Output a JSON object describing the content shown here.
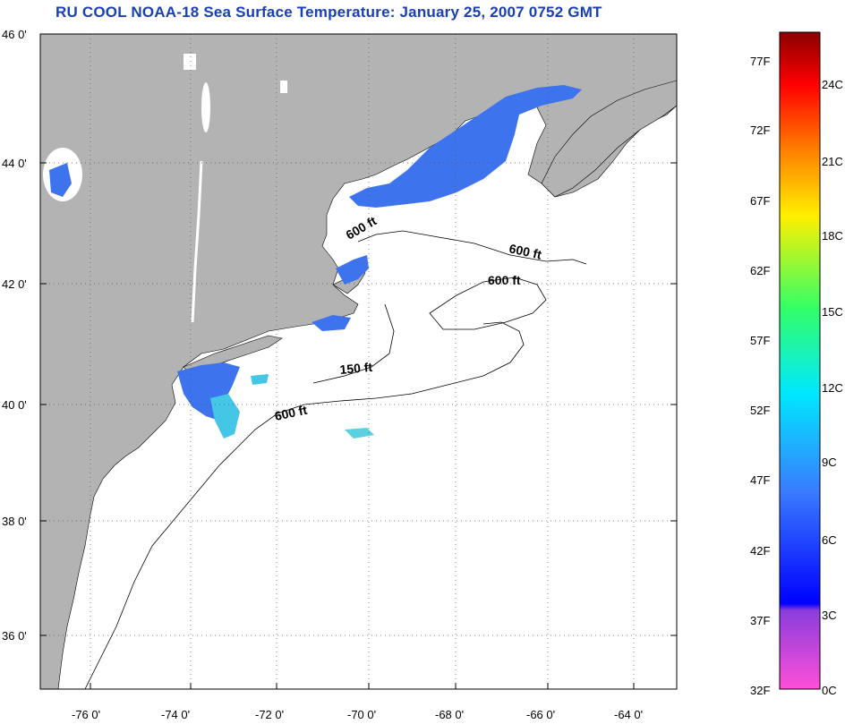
{
  "title": "RU COOL  NOAA-18  Sea Surface Temperature:  January 25, 2007 0752 GMT",
  "map": {
    "lat_labels": [
      "46 0'",
      "44 0'",
      "42 0'",
      "40 0'",
      "38 0'",
      "36 0'"
    ],
    "lon_labels": [
      "-76 0'",
      "-74 0'",
      "-72 0'",
      "-70 0'",
      "-68 0'",
      "-66 0'",
      "-64 0'"
    ],
    "contour_labels": [
      "600 ft",
      "600 ft",
      "600 ft",
      "150 ft",
      "600 ft"
    ],
    "colors": {
      "land": "#b3b3b3",
      "ocean": "#ffffff",
      "sst_cold": "#3d74ee",
      "sst_mid": "#44c6e6"
    }
  },
  "colorbar": {
    "f_labels": [
      "77F",
      "72F",
      "67F",
      "62F",
      "57F",
      "52F",
      "47F",
      "42F",
      "37F",
      "32F"
    ],
    "c_labels": [
      "24C",
      "21C",
      "18C",
      "15C",
      "12C",
      "9C",
      "6C",
      "3C",
      "0C"
    ]
  }
}
